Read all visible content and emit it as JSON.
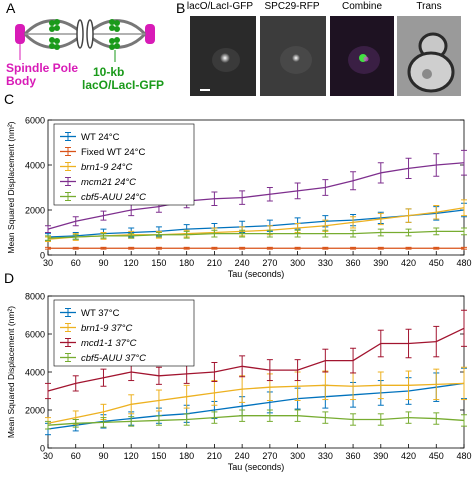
{
  "panel_letters": {
    "A": "A",
    "B": "B",
    "C": "C",
    "D": "D"
  },
  "schematic": {
    "spb_label": "Spindle Pole Body",
    "array_label_line1": "10-kb",
    "array_label_line2": "lacO/LacI-GFP",
    "spb_color": "#d81bb7",
    "array_color": "#1a9a1a"
  },
  "micrographs": [
    {
      "title": "lacO/LacI-GFP",
      "style": "gfp"
    },
    {
      "title": "SPC29-RFP",
      "style": "rfp"
    },
    {
      "title": "Combine",
      "style": "merge"
    },
    {
      "title": "Trans",
      "style": "trans"
    }
  ],
  "chart_data": [
    {
      "panel": "C",
      "type": "line",
      "xlabel": "Tau (seconds)",
      "ylabel": "Mean Squared Displacement (nm²)",
      "x": [
        30,
        60,
        90,
        120,
        150,
        180,
        210,
        240,
        270,
        300,
        330,
        360,
        390,
        420,
        450,
        480
      ],
      "xlim": [
        30,
        480
      ],
      "ylim": [
        0,
        6000
      ],
      "yticks": [
        0,
        2000,
        4000,
        6000
      ],
      "legend_position": "top-left",
      "series": [
        {
          "name": "WT 24°C",
          "italic": false,
          "color": "#0072bd",
          "values": [
            800,
            850,
            950,
            1000,
            1050,
            1150,
            1200,
            1250,
            1300,
            1400,
            1500,
            1550,
            1650,
            1750,
            1850,
            2000
          ],
          "errors": [
            150,
            150,
            200,
            200,
            200,
            200,
            200,
            250,
            250,
            250,
            250,
            250,
            250,
            300,
            300,
            300
          ]
        },
        {
          "name": "Fixed WT 24°C",
          "italic": false,
          "color": "#d95319",
          "values": [
            300,
            300,
            300,
            300,
            300,
            300,
            300,
            300,
            300,
            300,
            300,
            300,
            300,
            300,
            300,
            300
          ],
          "errors": [
            40,
            40,
            40,
            40,
            40,
            40,
            40,
            40,
            40,
            40,
            40,
            40,
            40,
            40,
            40,
            40
          ]
        },
        {
          "name": "brn1-9 24°C",
          "italic": true,
          "color": "#edb120",
          "values": [
            700,
            800,
            850,
            900,
            900,
            950,
            1000,
            1050,
            1100,
            1200,
            1300,
            1450,
            1600,
            1750,
            1900,
            2100
          ],
          "errors": [
            100,
            150,
            150,
            150,
            150,
            150,
            200,
            200,
            200,
            200,
            250,
            250,
            250,
            300,
            300,
            350
          ]
        },
        {
          "name": "mcm21 24°C",
          "italic": true,
          "color": "#7e2f8e",
          "values": [
            1150,
            1500,
            1750,
            2000,
            2150,
            2400,
            2500,
            2550,
            2700,
            2850,
            3000,
            3300,
            3650,
            3850,
            4000,
            4100
          ],
          "errors": [
            150,
            200,
            200,
            250,
            250,
            300,
            300,
            300,
            300,
            350,
            350,
            400,
            450,
            450,
            500,
            550
          ]
        },
        {
          "name": "cbf5-AUU 24°C",
          "italic": true,
          "color": "#77ac30",
          "values": [
            750,
            800,
            850,
            850,
            900,
            900,
            950,
            950,
            950,
            950,
            950,
            950,
            1000,
            1000,
            1050,
            1050
          ],
          "errors": [
            100,
            100,
            100,
            100,
            100,
            150,
            150,
            150,
            150,
            150,
            150,
            150,
            150,
            150,
            150,
            150
          ]
        }
      ]
    },
    {
      "panel": "D",
      "type": "line",
      "xlabel": "Tau (seconds)",
      "ylabel": "Mean Squared Displacement (nm²)",
      "x": [
        30,
        60,
        90,
        120,
        150,
        180,
        210,
        240,
        270,
        300,
        330,
        360,
        390,
        420,
        450,
        480
      ],
      "xlim": [
        30,
        480
      ],
      "ylim": [
        0,
        8000
      ],
      "yticks": [
        0,
        2000,
        4000,
        6000,
        8000
      ],
      "legend_position": "top-left",
      "series": [
        {
          "name": "WT 37°C",
          "italic": false,
          "color": "#0072bd",
          "values": [
            1000,
            1200,
            1400,
            1550,
            1700,
            1800,
            2000,
            2200,
            2400,
            2600,
            2700,
            2800,
            2900,
            3000,
            3200,
            3400
          ],
          "errors": [
            300,
            300,
            350,
            350,
            400,
            450,
            450,
            500,
            550,
            550,
            600,
            650,
            650,
            700,
            750,
            800
          ]
        },
        {
          "name": "brn1-9 37°C",
          "italic": true,
          "color": "#edb120",
          "values": [
            1300,
            1600,
            1900,
            2300,
            2500,
            2700,
            2900,
            3100,
            3200,
            3250,
            3300,
            3250,
            3300,
            3300,
            3350,
            3400
          ],
          "errors": [
            300,
            350,
            400,
            500,
            550,
            600,
            650,
            700,
            700,
            750,
            750,
            700,
            700,
            750,
            800,
            850
          ]
        },
        {
          "name": "mcd1-1 37°C",
          "italic": true,
          "color": "#a2142f",
          "values": [
            3000,
            3400,
            3700,
            4000,
            3800,
            3900,
            4000,
            4300,
            4100,
            4100,
            4600,
            4600,
            5500,
            5500,
            5600,
            6300
          ],
          "errors": [
            400,
            400,
            450,
            450,
            450,
            500,
            500,
            550,
            550,
            550,
            600,
            650,
            700,
            750,
            800,
            950
          ]
        },
        {
          "name": "cbf5-AUU 37°C",
          "italic": true,
          "color": "#77ac30",
          "values": [
            1200,
            1300,
            1350,
            1400,
            1450,
            1500,
            1600,
            1700,
            1700,
            1700,
            1600,
            1500,
            1500,
            1600,
            1550,
            1450
          ],
          "errors": [
            200,
            200,
            250,
            250,
            250,
            300,
            300,
            300,
            300,
            300,
            300,
            300,
            300,
            300,
            300,
            300
          ]
        }
      ]
    }
  ]
}
